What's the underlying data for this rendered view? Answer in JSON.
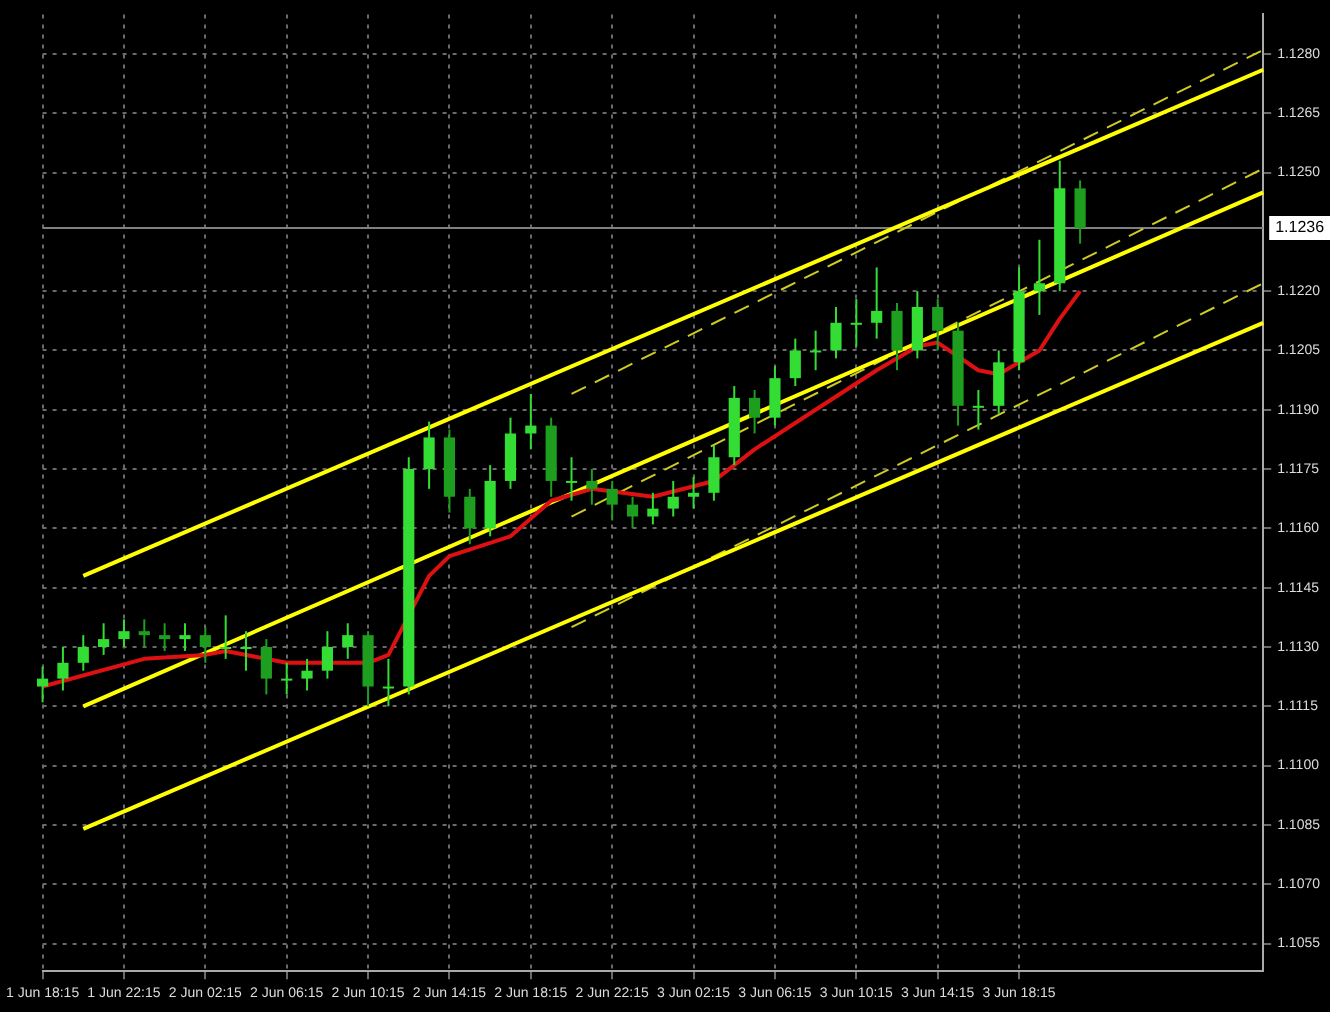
{
  "chart_data": {
    "type": "candlestick",
    "colors": [
      "#33dd33",
      "#33dd33",
      "#33dd33",
      "#33dd33",
      "#33dd33",
      "#1e9e1e",
      "#1e9e1e",
      "#33dd33",
      "#1e9e1e",
      "#33dd33",
      "#33dd33",
      "#1e9e1e",
      "#33dd33",
      "#33dd33",
      "#33dd33",
      "#33dd33",
      "#1e9e1e",
      "#33dd33",
      "#33dd33",
      "#33dd33",
      "#1e9e1e",
      "#1e9e1e",
      "#33dd33",
      "#33dd33",
      "#33dd33",
      "#1e9e1e",
      "#33dd33",
      "#1e9e1e",
      "#1e9e1e",
      "#1e9e1e",
      "#33dd33",
      "#33dd33",
      "#33dd33",
      "#33dd33",
      "#33dd33",
      "#1e9e1e",
      "#33dd33",
      "#33dd33",
      "#33dd33",
      "#33dd33",
      "#33dd33",
      "#33dd33",
      "#1e9e1e",
      "#33dd33",
      "#1e9e1e",
      "#1e9e1e",
      "#33dd33",
      "#33dd33",
      "#33dd33",
      "#33dd33",
      "#33dd33",
      "#1e9e1e",
      null,
      null,
      null,
      null,
      null,
      null,
      null,
      null,
      null
    ],
    "grid": true,
    "legend": false,
    "categories": [
      "1 Jun 18:15",
      null,
      null,
      null,
      "1 Jun 22:15",
      null,
      null,
      null,
      "2 Jun 02:15",
      null,
      null,
      null,
      "2 Jun 06:15",
      null,
      null,
      null,
      "2 Jun 10:15",
      null,
      null,
      null,
      "2 Jun 14:15",
      null,
      null,
      null,
      "2 Jun 18:15",
      null,
      null,
      null,
      "2 Jun 22:15",
      null,
      null,
      null,
      "3 Jun 02:15",
      null,
      null,
      null,
      "3 Jun 06:15",
      null,
      null,
      null,
      "3 Jun 10:15",
      null,
      null,
      null,
      "3 Jun 14:15",
      null,
      null,
      null,
      "3 Jun 18:15",
      null,
      null,
      null,
      null,
      null,
      null,
      null,
      null,
      null,
      null,
      null,
      null
    ],
    "ohlc": [
      [
        1.112,
        1.1125,
        1.1116,
        1.1122
      ],
      [
        1.1122,
        1.113,
        1.1119,
        1.1126
      ],
      [
        1.1126,
        1.1133,
        1.1124,
        1.113
      ],
      [
        1.113,
        1.1136,
        1.1128,
        1.1132
      ],
      [
        1.1132,
        1.1137,
        1.113,
        1.1134
      ],
      [
        1.1134,
        1.1137,
        1.113,
        1.1133
      ],
      [
        1.1133,
        1.1136,
        1.1129,
        1.1132
      ],
      [
        1.1132,
        1.1136,
        1.1129,
        1.1133
      ],
      [
        1.1133,
        1.1135,
        1.1126,
        1.113
      ],
      [
        1.113,
        1.1138,
        1.1127,
        1.113
      ],
      [
        1.113,
        1.1134,
        1.1124,
        1.113
      ],
      [
        1.113,
        1.1132,
        1.1118,
        1.1122
      ],
      [
        1.1122,
        1.1126,
        1.1118,
        1.1122
      ],
      [
        1.1122,
        1.1127,
        1.1119,
        1.1124
      ],
      [
        1.1124,
        1.1134,
        1.1122,
        1.113
      ],
      [
        1.113,
        1.1136,
        1.1127,
        1.1133
      ],
      [
        1.1133,
        1.1134,
        1.1115,
        1.112
      ],
      [
        1.112,
        1.1127,
        1.1115,
        1.112
      ],
      [
        1.112,
        1.1178,
        1.1118,
        1.1175
      ],
      [
        1.1175,
        1.1187,
        1.117,
        1.1183
      ],
      [
        1.1183,
        1.1185,
        1.1164,
        1.1168
      ],
      [
        1.1168,
        1.117,
        1.1156,
        1.116
      ],
      [
        1.116,
        1.1176,
        1.1158,
        1.1172
      ],
      [
        1.1172,
        1.1188,
        1.117,
        1.1184
      ],
      [
        1.1184,
        1.1194,
        1.118,
        1.1186
      ],
      [
        1.1186,
        1.1188,
        1.1168,
        1.1172
      ],
      [
        1.1172,
        1.1178,
        1.1167,
        1.1172
      ],
      [
        1.1172,
        1.1175,
        1.1166,
        1.117
      ],
      [
        1.117,
        1.1172,
        1.1162,
        1.1166
      ],
      [
        1.1166,
        1.1168,
        1.116,
        1.1163
      ],
      [
        1.1163,
        1.1169,
        1.1161,
        1.1165
      ],
      [
        1.1165,
        1.1172,
        1.1163,
        1.1168
      ],
      [
        1.1168,
        1.1173,
        1.1165,
        1.1169
      ],
      [
        1.1169,
        1.1181,
        1.1167,
        1.1178
      ],
      [
        1.1178,
        1.1196,
        1.1176,
        1.1193
      ],
      [
        1.1193,
        1.1195,
        1.1184,
        1.1188
      ],
      [
        1.1188,
        1.1201,
        1.1186,
        1.1198
      ],
      [
        1.1198,
        1.1208,
        1.1196,
        1.1205
      ],
      [
        1.1205,
        1.121,
        1.12,
        1.1205
      ],
      [
        1.1205,
        1.1216,
        1.1203,
        1.1212
      ],
      [
        1.1212,
        1.1218,
        1.1206,
        1.1212
      ],
      [
        1.1212,
        1.1226,
        1.1208,
        1.1215
      ],
      [
        1.1215,
        1.1217,
        1.12,
        1.1205
      ],
      [
        1.1205,
        1.122,
        1.1203,
        1.1216
      ],
      [
        1.1216,
        1.1218,
        1.1205,
        1.121
      ],
      [
        1.121,
        1.1212,
        1.1186,
        1.1191
      ],
      [
        1.1191,
        1.1195,
        1.1185,
        1.1191
      ],
      [
        1.1191,
        1.1205,
        1.1189,
        1.1202
      ],
      [
        1.1202,
        1.1226,
        1.12,
        1.122
      ],
      [
        1.122,
        1.1233,
        1.1214,
        1.1222
      ],
      [
        1.1222,
        1.1253,
        1.122,
        1.1246
      ],
      [
        1.1246,
        1.1248,
        1.1232,
        1.1236
      ],
      null,
      null,
      null,
      null,
      null,
      null,
      null,
      null,
      null
    ],
    "series": [
      {
        "type": "line",
        "color": "#dd1111",
        "values": [
          1.112,
          null,
          null,
          null,
          null,
          1.1127,
          null,
          null,
          1.1128,
          1.1129,
          null,
          null,
          1.1126,
          null,
          null,
          null,
          1.1126,
          1.1128,
          null,
          1.1148,
          1.1153,
          null,
          null,
          1.1158,
          null,
          1.1167,
          null,
          1.117,
          null,
          null,
          1.1168,
          null,
          null,
          1.1172,
          null,
          1.118,
          null,
          null,
          1.119,
          null,
          null,
          1.12,
          null,
          1.1206,
          1.1207,
          null,
          1.12,
          1.1199,
          null,
          1.1205,
          1.1213,
          1.122,
          null,
          null,
          null,
          null,
          null,
          null,
          null,
          null,
          null
        ]
      },
      {
        "type": "line",
        "color": "#ffff00",
        "line_style": "solid",
        "values": [
          null,
          null,
          1.1148,
          null,
          null,
          null,
          null,
          null,
          null,
          null,
          null,
          null,
          null,
          null,
          null,
          null,
          null,
          null,
          null,
          null,
          null,
          null,
          null,
          null,
          null,
          null,
          null,
          null,
          null,
          null,
          null,
          null,
          null,
          null,
          null,
          null,
          null,
          null,
          null,
          null,
          null,
          null,
          null,
          null,
          null,
          null,
          null,
          null,
          null,
          null,
          null,
          null,
          null,
          null,
          null,
          null,
          null,
          null,
          null,
          null,
          1.1276
        ]
      },
      {
        "type": "line",
        "color": "#ffff00",
        "line_style": "solid",
        "values": [
          null,
          null,
          1.1115,
          null,
          null,
          null,
          null,
          null,
          null,
          null,
          null,
          null,
          null,
          null,
          null,
          null,
          null,
          null,
          null,
          null,
          null,
          null,
          null,
          null,
          null,
          null,
          null,
          null,
          null,
          null,
          null,
          null,
          null,
          null,
          null,
          null,
          null,
          null,
          null,
          null,
          null,
          null,
          null,
          null,
          null,
          null,
          null,
          null,
          null,
          null,
          null,
          null,
          null,
          null,
          null,
          null,
          null,
          null,
          null,
          null,
          1.1245
        ]
      },
      {
        "type": "line",
        "color": "#ffff00",
        "line_style": "solid",
        "values": [
          null,
          null,
          1.1084,
          null,
          null,
          null,
          null,
          null,
          null,
          null,
          null,
          null,
          null,
          null,
          null,
          null,
          null,
          null,
          null,
          null,
          null,
          null,
          null,
          null,
          null,
          null,
          null,
          null,
          null,
          null,
          null,
          null,
          null,
          null,
          null,
          null,
          null,
          null,
          null,
          null,
          null,
          null,
          null,
          null,
          null,
          null,
          null,
          null,
          null,
          null,
          null,
          null,
          null,
          null,
          null,
          null,
          null,
          null,
          null,
          null,
          1.1212
        ]
      },
      {
        "type": "line",
        "color": "#cccc22",
        "line_style": "dashed",
        "values": [
          null,
          null,
          null,
          null,
          null,
          null,
          null,
          null,
          null,
          null,
          null,
          null,
          null,
          null,
          null,
          null,
          null,
          null,
          null,
          null,
          null,
          null,
          null,
          null,
          null,
          null,
          1.1194,
          null,
          null,
          null,
          null,
          null,
          null,
          null,
          null,
          null,
          null,
          null,
          null,
          null,
          null,
          null,
          null,
          null,
          null,
          null,
          null,
          null,
          null,
          null,
          null,
          null,
          null,
          null,
          null,
          null,
          null,
          null,
          null,
          null,
          1.1281
        ]
      },
      {
        "type": "line",
        "color": "#cccc22",
        "line_style": "dashed",
        "values": [
          null,
          null,
          null,
          null,
          null,
          null,
          null,
          null,
          null,
          null,
          null,
          null,
          null,
          null,
          null,
          null,
          null,
          null,
          null,
          null,
          null,
          null,
          null,
          null,
          null,
          null,
          1.1163,
          null,
          null,
          null,
          null,
          null,
          null,
          null,
          null,
          null,
          null,
          null,
          null,
          null,
          null,
          null,
          null,
          null,
          null,
          null,
          null,
          null,
          null,
          null,
          null,
          null,
          null,
          null,
          null,
          null,
          null,
          null,
          null,
          null,
          1.1251
        ]
      },
      {
        "type": "line",
        "color": "#cccc22",
        "line_style": "dashed",
        "values": [
          null,
          null,
          null,
          null,
          null,
          null,
          null,
          null,
          null,
          null,
          null,
          null,
          null,
          null,
          null,
          null,
          null,
          null,
          null,
          null,
          null,
          null,
          null,
          null,
          null,
          null,
          1.1135,
          null,
          null,
          null,
          null,
          null,
          null,
          null,
          null,
          null,
          null,
          null,
          null,
          null,
          null,
          null,
          null,
          null,
          null,
          null,
          null,
          null,
          null,
          null,
          null,
          null,
          null,
          null,
          null,
          null,
          null,
          null,
          null,
          null,
          1.1222
        ]
      }
    ],
    "ref_lines": [
      {
        "axis": "y",
        "value": 1.1236,
        "label": "1.1236",
        "color": "#808080"
      }
    ],
    "ylim": [
      1.1048,
      1.129
    ],
    "yticks": [
      {
        "value": 1.1055,
        "label": "1.1055"
      },
      {
        "value": 1.107,
        "label": "1.1070"
      },
      {
        "value": 1.1085,
        "label": "1.1085"
      },
      {
        "value": 1.11,
        "label": "1.1100"
      },
      {
        "value": 1.1115,
        "label": "1.1115"
      },
      {
        "value": 1.113,
        "label": "1.1130"
      },
      {
        "value": 1.1145,
        "label": "1.1145"
      },
      {
        "value": 1.116,
        "label": "1.1160"
      },
      {
        "value": 1.1175,
        "label": "1.1175"
      },
      {
        "value": 1.119,
        "label": "1.1190"
      },
      {
        "value": 1.1205,
        "label": "1.1205"
      },
      {
        "value": 1.122,
        "label": "1.1220"
      },
      {
        "value": 1.125,
        "label": "1.1250"
      },
      {
        "value": 1.1265,
        "label": "1.1265"
      },
      {
        "value": 1.128,
        "label": "1.1280"
      }
    ]
  }
}
